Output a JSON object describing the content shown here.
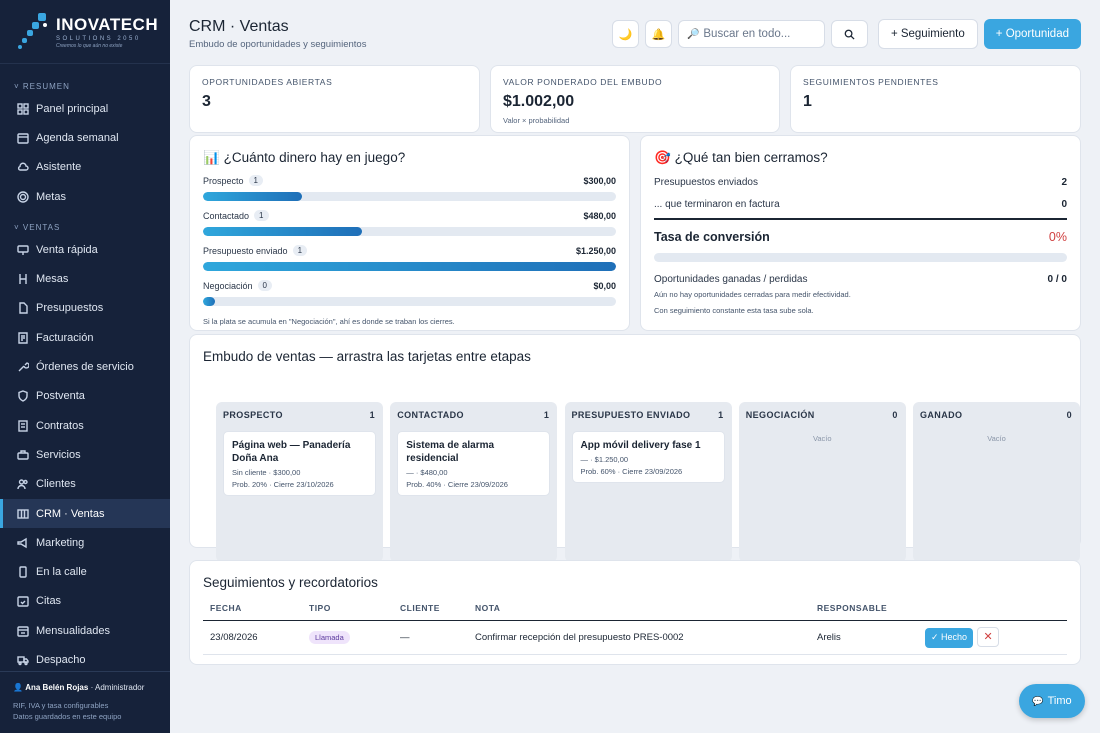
{
  "sidebar": {
    "brand": {
      "name": "INOVATECH",
      "sub": "SOLUTIONS 2050",
      "tagline": "Creemos lo que aún no existe"
    },
    "sections": [
      "RESUMEN",
      "VENTAS"
    ],
    "items": [
      {
        "label": "Panel principal",
        "icon": "grid-icon"
      },
      {
        "label": "Agenda semanal",
        "icon": "calendar-icon"
      },
      {
        "label": "Asistente",
        "icon": "cloud-icon"
      },
      {
        "label": "Metas",
        "icon": "target-icon"
      },
      {
        "label": "Venta rápida",
        "icon": "monitor-icon"
      },
      {
        "label": "Mesas",
        "icon": "chair-icon"
      },
      {
        "label": "Presupuestos",
        "icon": "file-icon"
      },
      {
        "label": "Facturación",
        "icon": "receipt-icon"
      },
      {
        "label": "Órdenes de servicio",
        "icon": "wrench-icon"
      },
      {
        "label": "Postventa",
        "icon": "shield-icon"
      },
      {
        "label": "Contratos",
        "icon": "document-icon"
      },
      {
        "label": "Servicios",
        "icon": "briefcase-icon"
      },
      {
        "label": "Clientes",
        "icon": "users-icon"
      },
      {
        "label": "CRM · Ventas",
        "icon": "kanban-icon",
        "active": true
      },
      {
        "label": "Marketing",
        "icon": "megaphone-icon"
      },
      {
        "label": "En la calle",
        "icon": "phone-icon"
      },
      {
        "label": "Citas",
        "icon": "calendar-check-icon"
      },
      {
        "label": "Mensualidades",
        "icon": "calendar-repeat-icon"
      },
      {
        "label": "Despacho",
        "icon": "truck-icon"
      }
    ],
    "user_name": "Ana Belén Rojas",
    "user_role": "· Administrador",
    "note1": "RIF, IVA y tasa configurables",
    "note2": "Datos guardados en este equipo"
  },
  "header": {
    "title": "CRM · Ventas",
    "subtitle": "Embudo de oportunidades y seguimientos",
    "search_placeholder": "Buscar en todo...",
    "followup_button": "+ Seguimiento",
    "opportunity_button": "+ Oportunidad"
  },
  "kpis": [
    {
      "label": "OPORTUNIDADES ABIERTAS",
      "value": "3"
    },
    {
      "label": "VALOR PONDERADO DEL EMBUDO",
      "value": "$1.002,00",
      "note": "Valor × probabilidad"
    },
    {
      "label": "SEGUIMIENTOS PENDIENTES",
      "value": "1"
    }
  ],
  "money": {
    "title": "¿Cuánto dinero hay en juego?",
    "rows": [
      {
        "label": "Prospecto",
        "count": "1",
        "amount": "$300,00",
        "fraction": 0.24
      },
      {
        "label": "Contactado",
        "count": "1",
        "amount": "$480,00",
        "fraction": 0.384
      },
      {
        "label": "Presupuesto enviado",
        "count": "1",
        "amount": "$1.250,00",
        "fraction": 1.0
      },
      {
        "label": "Negociación",
        "count": "0",
        "amount": "$0,00",
        "fraction": 0.0
      }
    ],
    "hint": "Si la plata se acumula en \"Negociación\", ahí es donde se traban los cierres."
  },
  "conversion": {
    "title": "¿Qué tan bien cerramos?",
    "sent_label": "Presupuestos enviados",
    "sent_value": "2",
    "invoiced_label": "... que terminaron en factura",
    "invoiced_value": "0",
    "rate_label": "Tasa de conversión",
    "rate_value": "0%",
    "rate_fraction": 0,
    "wonlost_label": "Oportunidades ganadas / perdidas",
    "wonlost_value": "0 / 0",
    "note1": "Aún no hay oportunidades cerradas para medir efectividad.",
    "note2": "Con seguimiento constante esta tasa sube sola."
  },
  "pipeline": {
    "title": "Embudo de ventas — arrastra las tarjetas entre etapas",
    "empty_label": "Vacío",
    "columns": [
      {
        "name": "PROSPECTO",
        "count": "1",
        "card": {
          "title": "Página web — Panadería Doña Ana",
          "line1": "Sin cliente · $300,00",
          "line2": "Prob. 20% · Cierre 23/10/2026"
        }
      },
      {
        "name": "CONTACTADO",
        "count": "1",
        "card": {
          "title": "Sistema de alarma residencial",
          "line1": "— · $480,00",
          "line2": "Prob. 40% · Cierre 23/09/2026"
        }
      },
      {
        "name": "PRESUPUESTO ENVIADO",
        "count": "1",
        "card": {
          "title": "App móvil delivery fase 1",
          "line1": "— · $1.250,00",
          "line2": "Prob. 60% · Cierre 23/09/2026"
        }
      },
      {
        "name": "NEGOCIACIÓN",
        "count": "0"
      },
      {
        "name": "GANADO",
        "count": "0"
      }
    ]
  },
  "followups": {
    "title": "Seguimientos y recordatorios",
    "headers": [
      "FECHA",
      "TIPO",
      "CLIENTE",
      "NOTA",
      "RESPONSABLE",
      ""
    ],
    "rows": [
      {
        "date": "23/08/2026",
        "type": "Llamada",
        "client": "—",
        "note": "Confirmar recepción del presupuesto PRES-0002",
        "owner": "Arelis",
        "done_label": "✓ Hecho",
        "delete_label": "✕"
      }
    ]
  },
  "assistant_button": "Timo",
  "colors": {
    "accent": "#3aa6e0",
    "sidebar": "#16223a",
    "danger": "#d04040"
  }
}
